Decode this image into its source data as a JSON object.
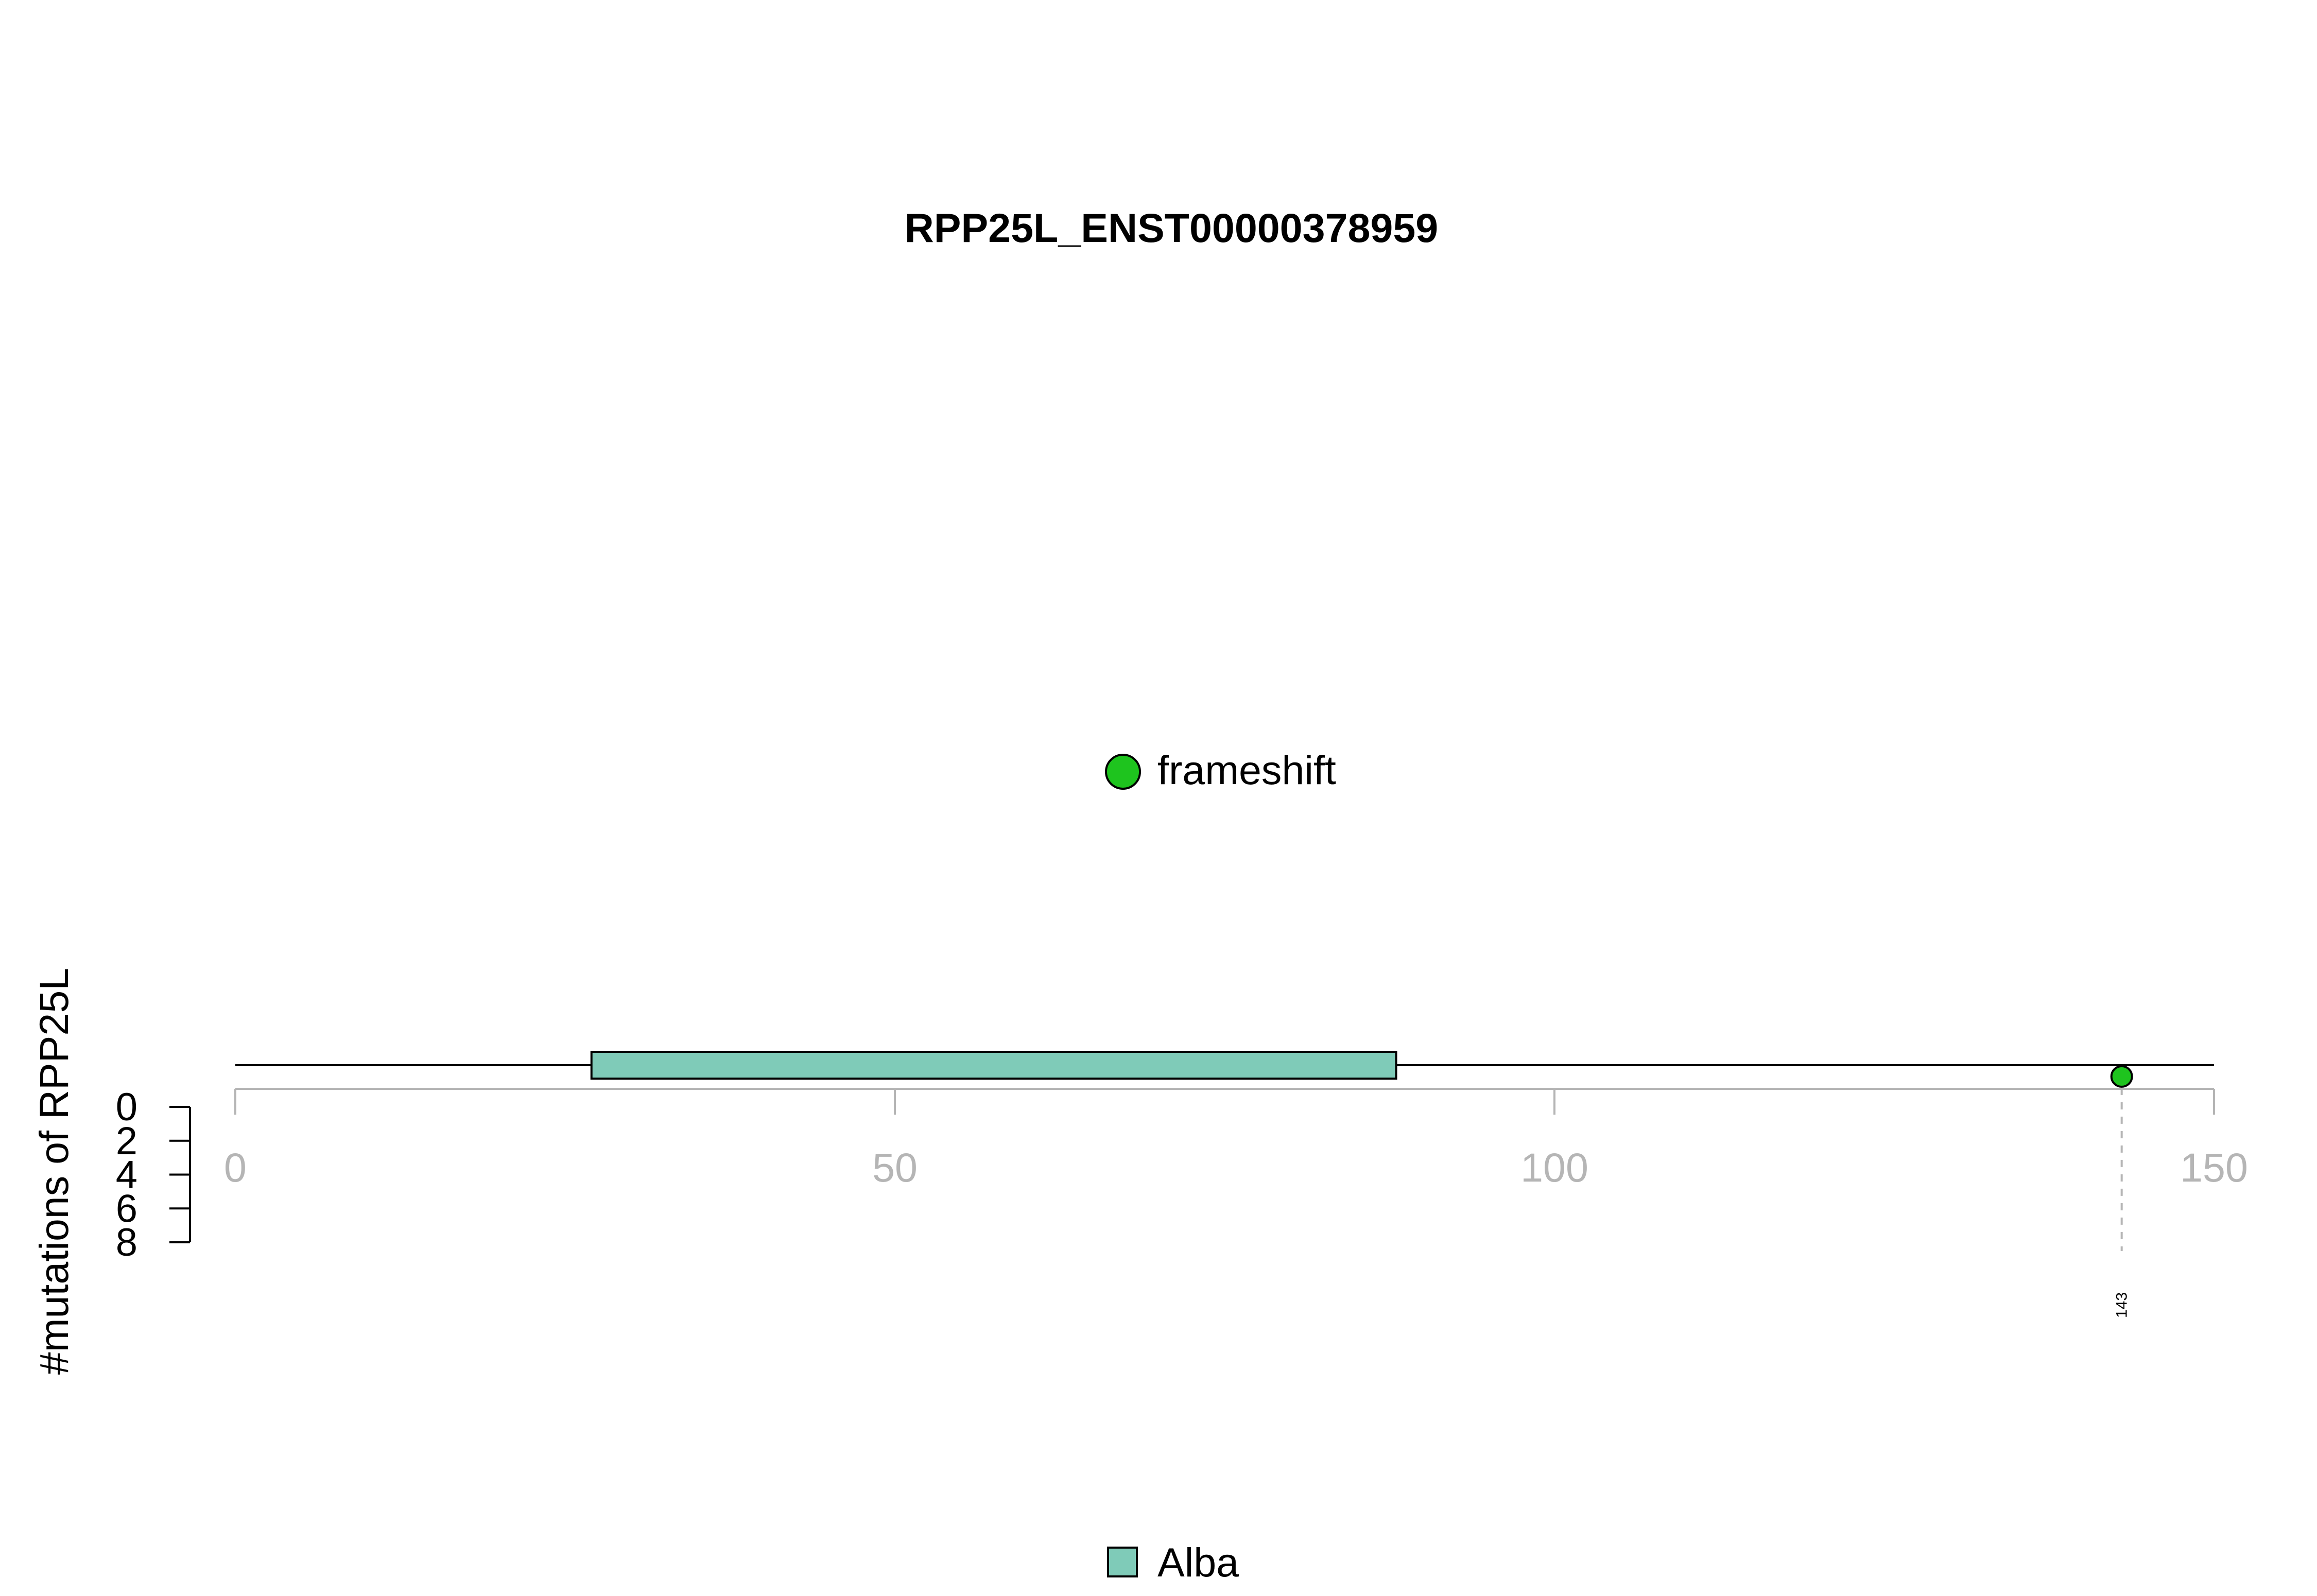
{
  "chart_data": {
    "type": "lollipop",
    "title": "RPP25L_ENST00000378959",
    "ylabel": "#mutations of RPP25L",
    "xlim": [
      0,
      150
    ],
    "x_ticks": [
      0,
      50,
      100,
      150
    ],
    "y_ticks": [
      0,
      2,
      4,
      6,
      8
    ],
    "ylim": [
      0,
      8
    ],
    "protein_length": 150,
    "domains": [
      {
        "name": "Alba",
        "start": 27,
        "end": 88,
        "color": "#7fcbb8"
      }
    ],
    "mutations": [
      {
        "position": 143,
        "label": "143",
        "count": 1,
        "type": "frameshift",
        "color": "#1ec41e"
      }
    ],
    "legend_mutation": [
      {
        "label": "frameshift",
        "color": "#1ec41e"
      }
    ],
    "legend_domain": [
      {
        "label": "Alba",
        "color": "#7fcbb8"
      }
    ]
  }
}
